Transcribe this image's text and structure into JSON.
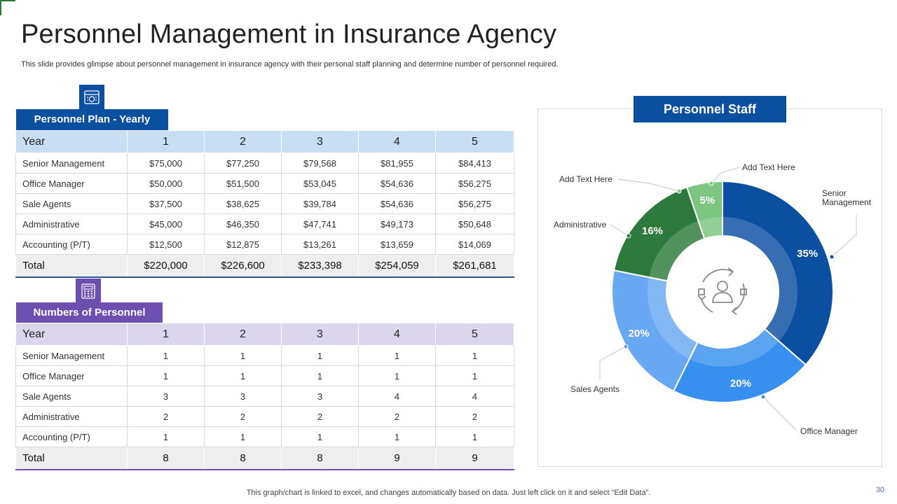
{
  "title": "Personnel Management in Insurance Agency",
  "subtitle": "This slide provides glimpse about personnel management in insurance agency with their personal staff planning and determine number of personnel required.",
  "footer": "This graph/chart is linked to excel, and changes automatically based on data. Just left click on it and select “Edit Data”.",
  "page_number": "30",
  "colors": {
    "plan_accent": "#0b4fa0",
    "count_accent": "#6d4fb0"
  },
  "plan": {
    "label": "Personnel Plan - Yearly",
    "icon": "calculator-money-icon",
    "header": [
      "Year",
      "1",
      "2",
      "3",
      "4",
      "5"
    ],
    "rows": [
      [
        "Senior Management",
        "$75,000",
        "$77,250",
        "$79,568",
        "$81,955",
        "$84,413"
      ],
      [
        "Office Manager",
        "$50,000",
        "$51,500",
        "$53,045",
        "$54,636",
        "$56,275"
      ],
      [
        "Sale Agents",
        "$37,500",
        "$38,625",
        "$39,784",
        "$54,636",
        "$56,275"
      ],
      [
        "Administrative",
        "$45,000",
        "$46,350",
        "$47,741",
        "$49,173",
        "$50,648"
      ],
      [
        "Accounting (P/T)",
        "$12,500",
        "$12,875",
        "$13,261",
        "$13,659",
        "$14,069"
      ]
    ],
    "total": [
      "Total",
      "$220,000",
      "$226,600",
      "$233,398",
      "$254,059",
      "$261,681"
    ]
  },
  "counts": {
    "label": "Numbers of Personnel",
    "icon": "calculator-icon",
    "header": [
      "Year",
      "1",
      "2",
      "3",
      "4",
      "5"
    ],
    "rows": [
      [
        "Senior Management",
        "1",
        "1",
        "1",
        "1",
        "1"
      ],
      [
        "Office Manager",
        "1",
        "1",
        "1",
        "1",
        "1"
      ],
      [
        "Sale Agents",
        "3",
        "3",
        "3",
        "4",
        "4"
      ],
      [
        "Administrative",
        "2",
        "2",
        "2",
        "2",
        "2"
      ],
      [
        "Accounting (P/T)",
        "1",
        "1",
        "1",
        "1",
        "1"
      ]
    ],
    "total": [
      "Total",
      "8",
      "8",
      "8",
      "9",
      "9"
    ]
  },
  "chart_data": {
    "type": "pie",
    "title": "Personnel Staff",
    "center_icon": "people-cycle-icon",
    "slices": [
      {
        "label": "Senior Management",
        "value": 35,
        "value_label": "35%",
        "color": "#0b4fa0"
      },
      {
        "label": "Office Manager",
        "value": 20,
        "value_label": "20%",
        "color": "#3790f0"
      },
      {
        "label": "Sales Agents",
        "value": 20,
        "value_label": "20%",
        "color": "#68a8f2"
      },
      {
        "label": "Administrative",
        "value": 16,
        "value_label": "16%",
        "color": "#2d7a3c"
      },
      {
        "label": "Add Text Here",
        "value": 5,
        "value_label": "5%",
        "color": "#7cc67f"
      }
    ],
    "extra_labels": [
      "Add Text Here"
    ]
  }
}
